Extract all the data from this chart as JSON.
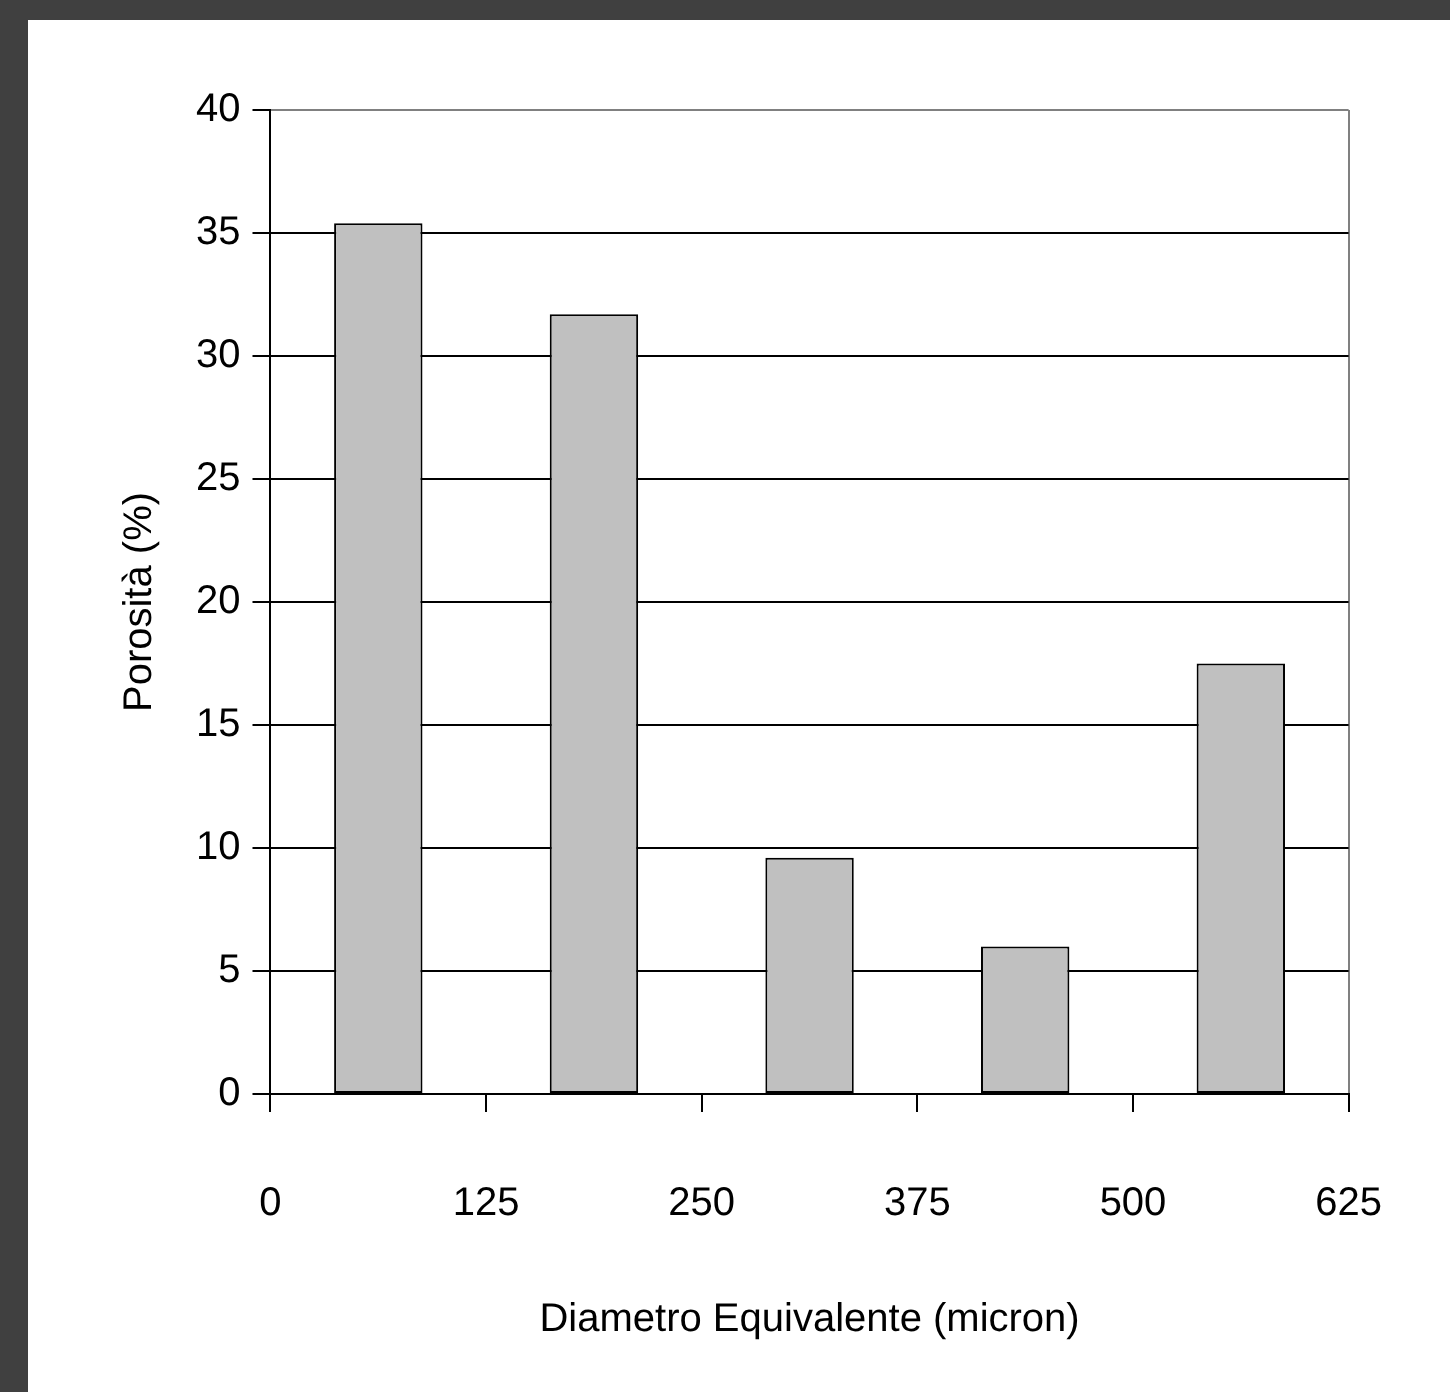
{
  "chart_data": {
    "type": "bar",
    "xlabel": "Diametro Equivalente (micron)",
    "ylabel": "Porosità (%)",
    "x": [
      62.5,
      187.5,
      312.5,
      437.5,
      562.5
    ],
    "values": [
      35.4,
      31.7,
      9.6,
      6.0,
      17.5
    ],
    "color": "#c0c0c0",
    "xlim": [
      0,
      625
    ],
    "xticks": [
      0,
      125,
      250,
      375,
      500,
      625
    ],
    "ylim": [
      0,
      40
    ],
    "yticks": [
      0,
      5,
      10,
      15,
      20,
      25,
      30,
      35,
      40
    ],
    "grid": "y"
  }
}
